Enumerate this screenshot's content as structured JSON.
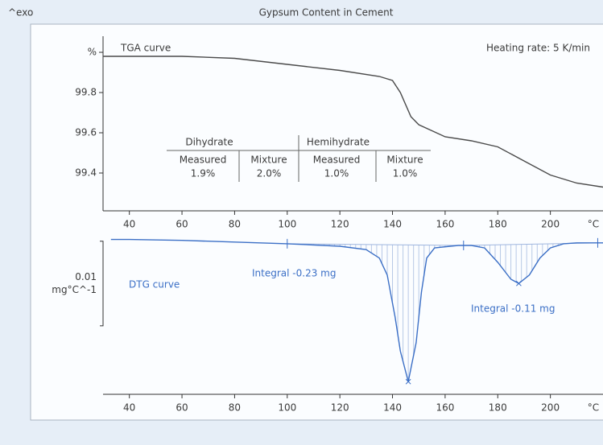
{
  "header": {
    "corner": "^exo",
    "title": "Gypsum Content  in Cement"
  },
  "chart_data": [
    {
      "type": "line",
      "series_label": "TGA curve",
      "note": "Heating rate: 5 K/min",
      "x_label": "°C",
      "color": "#4a4a4a",
      "x": [
        30,
        40,
        60,
        80,
        100,
        120,
        135,
        140,
        143,
        147,
        150,
        155,
        160,
        170,
        180,
        190,
        200,
        210,
        220
      ],
      "values": [
        99.98,
        99.98,
        99.98,
        99.97,
        99.94,
        99.91,
        99.88,
        99.86,
        99.8,
        99.68,
        99.64,
        99.61,
        99.58,
        99.56,
        99.53,
        99.46,
        99.39,
        99.35,
        99.33
      ],
      "xlim": [
        30,
        220
      ],
      "xticks": [
        40,
        60,
        80,
        100,
        120,
        140,
        160,
        180,
        200
      ],
      "ylim": [
        99.212,
        100.08
      ],
      "yticks": [
        {
          "value": 100,
          "label": "%"
        },
        99.8,
        99.6,
        99.4
      ],
      "table": {
        "groups": [
          "Dihydrate",
          "Hemihydrate"
        ],
        "columns": [
          "Measured",
          "Mixture",
          "Measured",
          "Mixture"
        ],
        "values": [
          "1.9%",
          "2.0%",
          "1.0%",
          "1.0%"
        ]
      }
    },
    {
      "type": "line",
      "series_label": "DTG curve",
      "x_label": "°C",
      "color": "#3b6fc6",
      "x": [
        33,
        40,
        60,
        80,
        100,
        120,
        130,
        135,
        138,
        141,
        143,
        146,
        149,
        151,
        153,
        156,
        165,
        170,
        175,
        180,
        185,
        188,
        192,
        196,
        200,
        205,
        210,
        220
      ],
      "values": [
        0.0002,
        0.0002,
        0.0001,
        -0.0001,
        -0.0003,
        -0.0006,
        -0.001,
        -0.002,
        -0.004,
        -0.009,
        -0.013,
        -0.0166,
        -0.012,
        -0.006,
        -0.002,
        -0.0008,
        -0.0005,
        -0.0005,
        -0.0008,
        -0.0025,
        -0.0045,
        -0.005,
        -0.004,
        -0.002,
        -0.0008,
        -0.0003,
        -0.0002,
        -0.0002
      ],
      "xlim": [
        30,
        220
      ],
      "xticks": [
        40,
        60,
        80,
        100,
        120,
        140,
        160,
        180,
        200
      ],
      "ylim": [
        -0.0181,
        0.0014
      ],
      "scale_bar": {
        "value": 0.01,
        "unit": "mg°C^-1"
      },
      "integral_limits": [
        100,
        167,
        218
      ],
      "annotations": [
        "Integral  -0.23 mg",
        "Integral  -0.11 mg"
      ]
    }
  ]
}
